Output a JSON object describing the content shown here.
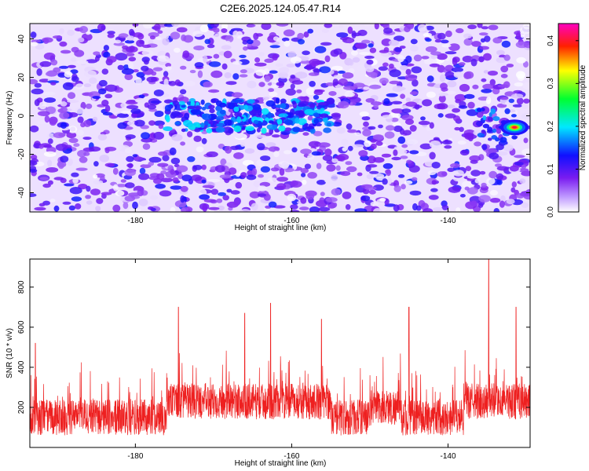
{
  "title": "C2E6.2025.124.05.47.R14",
  "chart_data": [
    {
      "type": "heatmap",
      "xlabel": "Height of straight line (km)",
      "ylabel": "Frequency (Hz)",
      "xlim": [
        -193.5,
        -129.5
      ],
      "ylim": [
        -50,
        48
      ],
      "xticks": [
        -180,
        -160,
        -140
      ],
      "yticks": [
        -40,
        -20,
        0,
        20,
        40
      ],
      "colorbar": {
        "label": "Normalized spectral amplitude",
        "range": [
          0,
          0.44
        ],
        "ticks": [
          0.0,
          0.1,
          0.2,
          0.3,
          0.4
        ],
        "tick_labels": [
          "0.0",
          "0.1",
          "0.2",
          "0.3",
          "0.4"
        ],
        "colors": [
          "#ffffff",
          "#9b30ff",
          "#0000ff",
          "#00ffff",
          "#00ff00",
          "#ffff00",
          "#ff0000",
          "#ff00ff"
        ]
      },
      "features": [
        {
          "x_range": [
            -176,
            -155
          ],
          "y": 0,
          "amplitude": 0.12
        },
        {
          "x": -131.5,
          "y": -6,
          "amplitude": 0.35
        }
      ]
    },
    {
      "type": "line",
      "xlabel": "Height of straight line (km)",
      "ylabel": "SNR (10 * v/v)",
      "xlim": [
        -193.5,
        -129.5
      ],
      "ylim": [
        0,
        940
      ],
      "xticks": [
        -180,
        -160,
        -140
      ],
      "yticks": [
        200,
        400,
        600,
        800
      ],
      "color": "#ee2020",
      "peaks": [
        {
          "x": -192.8,
          "y": 520
        },
        {
          "x": -174.5,
          "y": 700
        },
        {
          "x": -166,
          "y": 670
        },
        {
          "x": -162.7,
          "y": 720
        },
        {
          "x": -156.2,
          "y": 640
        },
        {
          "x": -145,
          "y": 700
        },
        {
          "x": -134.8,
          "y": 940
        },
        {
          "x": -131.3,
          "y": 700
        }
      ]
    }
  ]
}
